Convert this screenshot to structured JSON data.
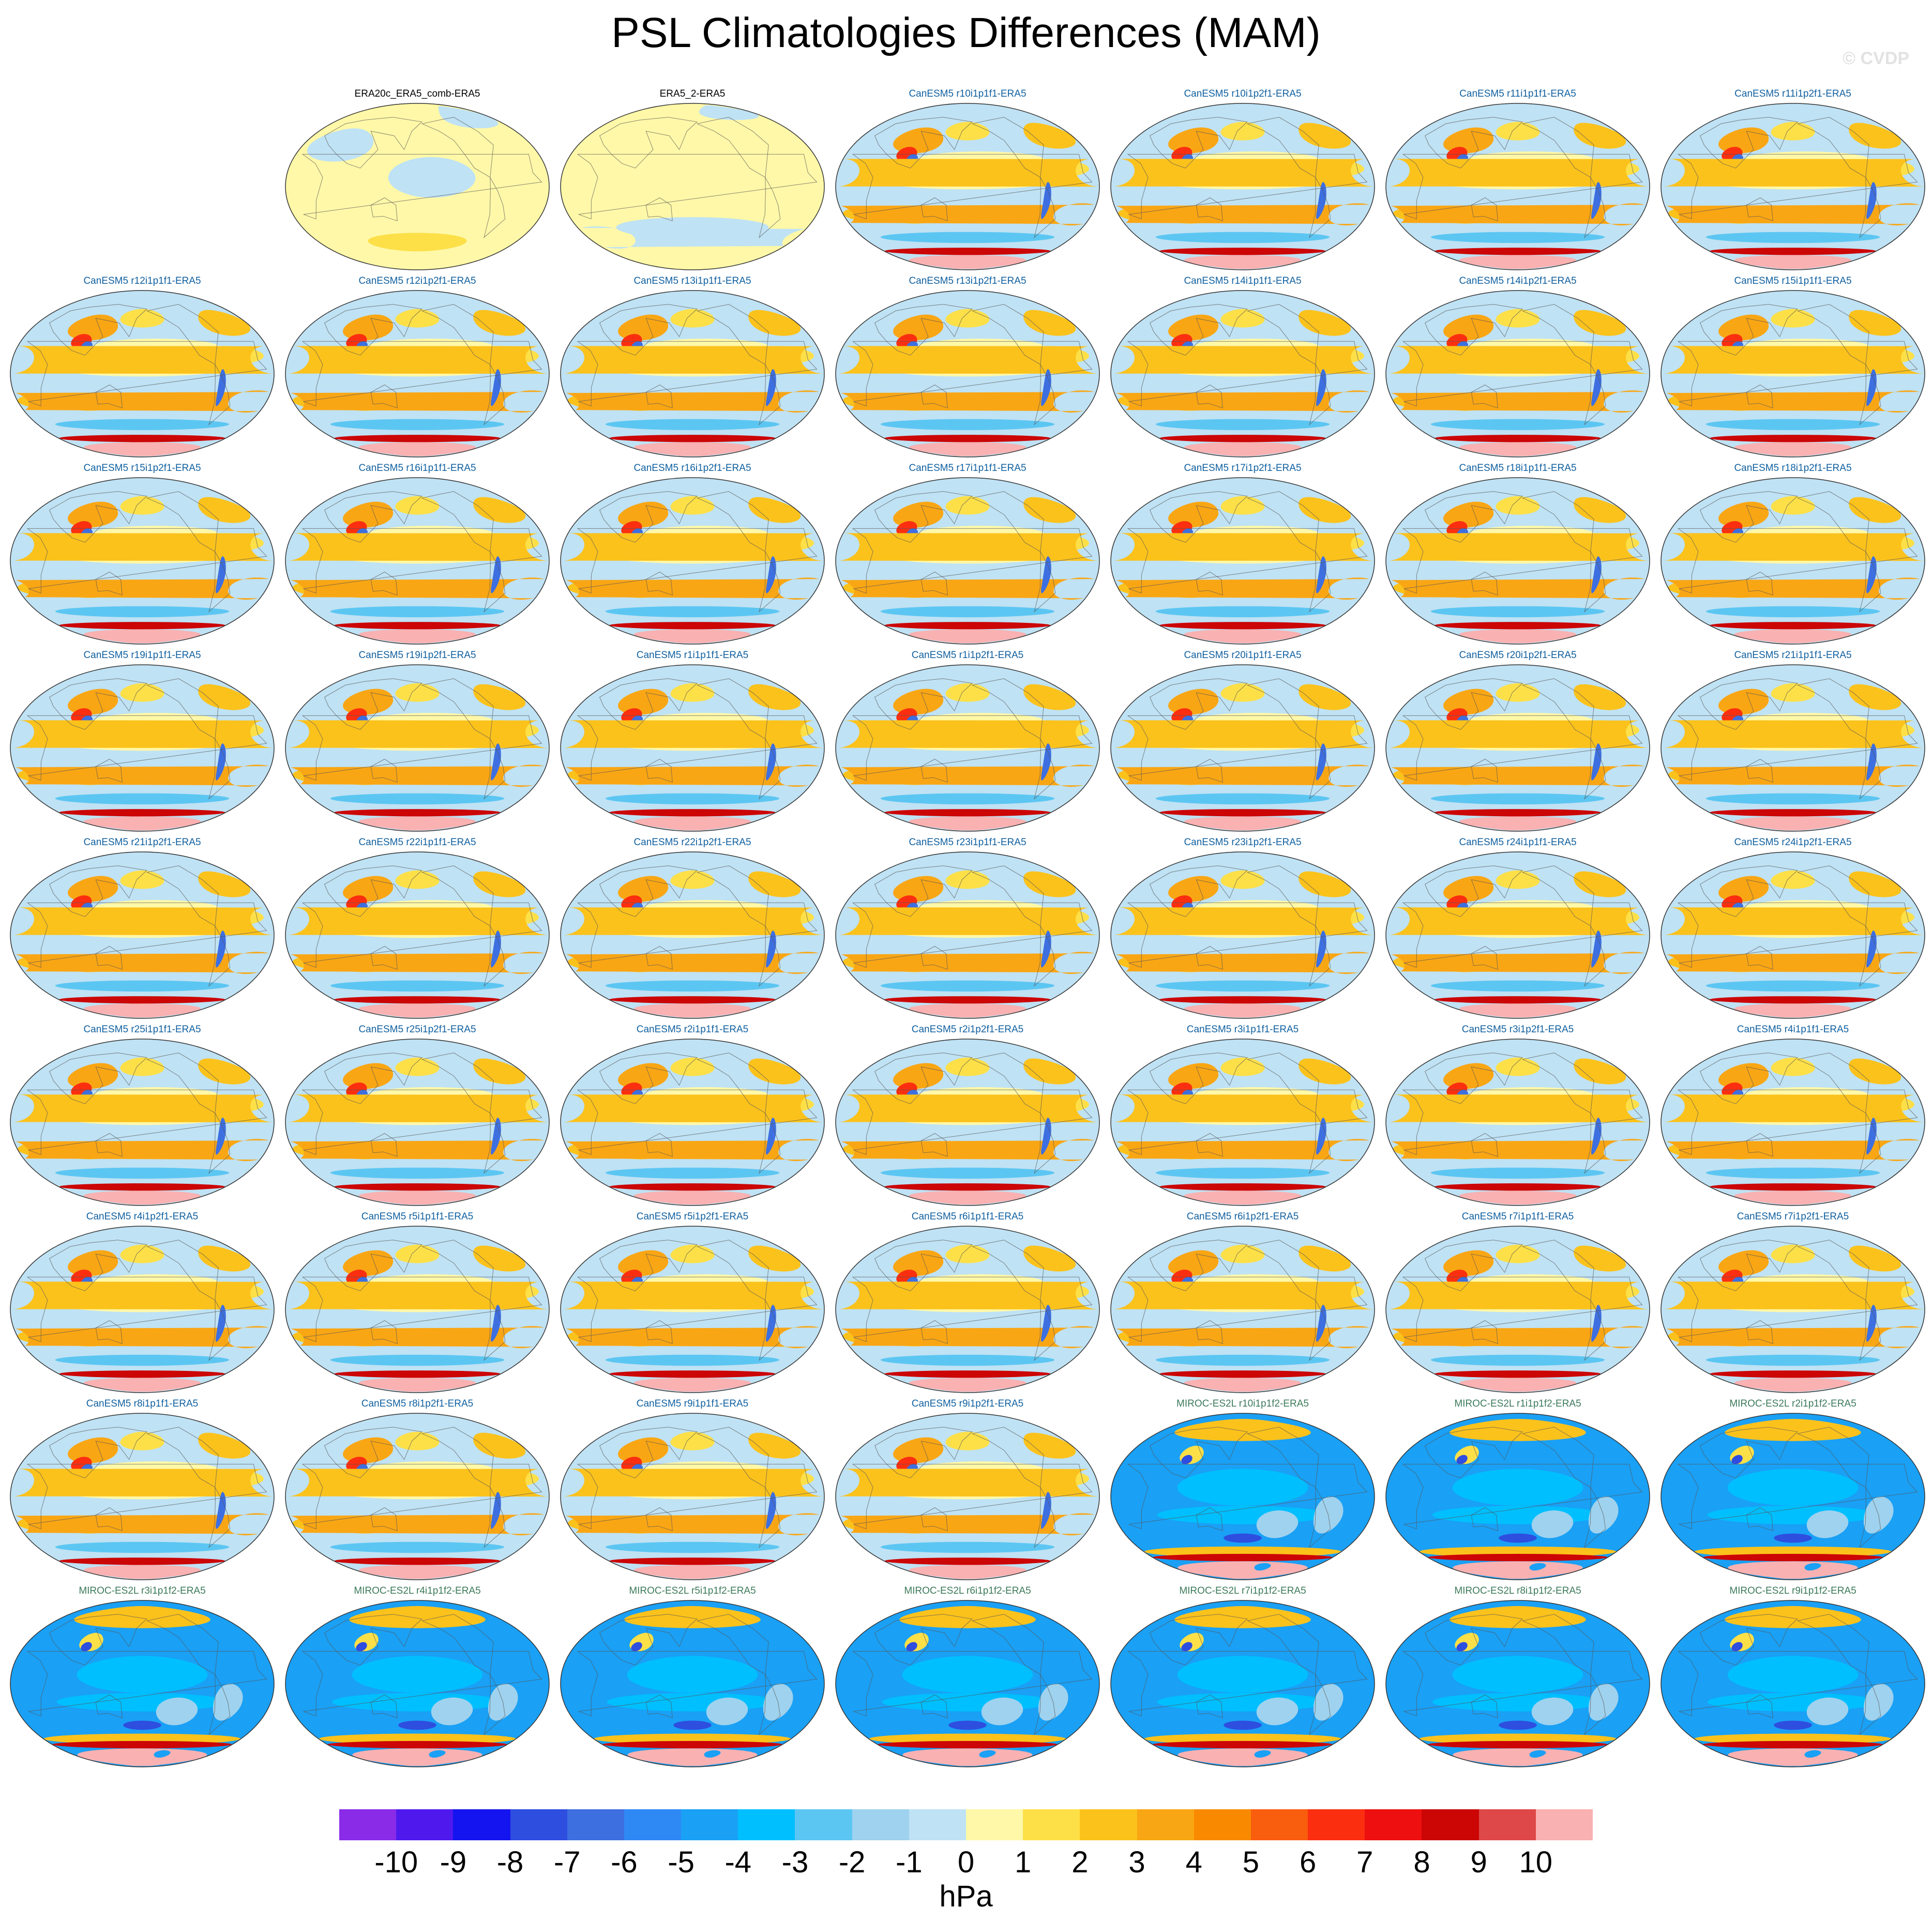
{
  "title": "PSL Climatologies Differences (MAM)",
  "watermark": "© CVDP",
  "chart_data": {
    "type": "map_grid",
    "title": "PSL Climatologies Differences (MAM)",
    "projection": "Robinson (Pacific-centered)",
    "variable": "PSL difference vs ERA5",
    "colorbar": {
      "units": "hPa",
      "levels": [
        -10,
        -9,
        -8,
        -7,
        -6,
        -5,
        -4,
        -3,
        -2,
        -1,
        0,
        1,
        2,
        3,
        4,
        5,
        6,
        7,
        8,
        9,
        10
      ],
      "tick_labels": [
        "-10",
        "-9",
        "-8",
        "-7",
        "-6",
        "-5",
        "-4",
        "-3",
        "-2",
        "-1",
        "0",
        "1",
        "2",
        "3",
        "4",
        "5",
        "6",
        "7",
        "8",
        "9",
        "10"
      ],
      "colors": [
        "#8a2be8",
        "#4f19ee",
        "#1414f0",
        "#2e4ee0",
        "#3d6fe0",
        "#2f89f5",
        "#1aa0f5",
        "#00bfff",
        "#5cc6f2",
        "#9fd2ee",
        "#bfe2f4",
        "#fff8a8",
        "#fde048",
        "#fbc21c",
        "#f9a614",
        "#f98a00",
        "#f95d0e",
        "#fb2f10",
        "#ee1010",
        "#cc0505",
        "#de4848",
        "#f9b1b1"
      ]
    },
    "panel_colors": {
      "ERA20c_ERA5_comb-ERA5": "#000000",
      "ERA5_2-ERA5": "#000000",
      "CanESM5": "#1060a0",
      "MIROC-ES2L": "#3c7a5a"
    },
    "panels": [
      {
        "label": "ERA20c_ERA5_comb-ERA5",
        "row": 0,
        "col": 1,
        "group": "obs1"
      },
      {
        "label": "ERA5_2-ERA5",
        "row": 0,
        "col": 2,
        "group": "obs2"
      },
      {
        "label": "CanESM5 r10i1p1f1-ERA5",
        "row": 0,
        "col": 3,
        "group": "canesm"
      },
      {
        "label": "CanESM5 r10i1p2f1-ERA5",
        "row": 0,
        "col": 4,
        "group": "canesm"
      },
      {
        "label": "CanESM5 r11i1p1f1-ERA5",
        "row": 0,
        "col": 5,
        "group": "canesm"
      },
      {
        "label": "CanESM5 r11i1p2f1-ERA5",
        "row": 0,
        "col": 6,
        "group": "canesm"
      },
      {
        "label": "CanESM5 r12i1p1f1-ERA5",
        "row": 1,
        "col": 0,
        "group": "canesm"
      },
      {
        "label": "CanESM5 r12i1p2f1-ERA5",
        "row": 1,
        "col": 1,
        "group": "canesm"
      },
      {
        "label": "CanESM5 r13i1p1f1-ERA5",
        "row": 1,
        "col": 2,
        "group": "canesm"
      },
      {
        "label": "CanESM5 r13i1p2f1-ERA5",
        "row": 1,
        "col": 3,
        "group": "canesm"
      },
      {
        "label": "CanESM5 r14i1p1f1-ERA5",
        "row": 1,
        "col": 4,
        "group": "canesm"
      },
      {
        "label": "CanESM5 r14i1p2f1-ERA5",
        "row": 1,
        "col": 5,
        "group": "canesm"
      },
      {
        "label": "CanESM5 r15i1p1f1-ERA5",
        "row": 1,
        "col": 6,
        "group": "canesm"
      },
      {
        "label": "CanESM5 r15i1p2f1-ERA5",
        "row": 2,
        "col": 0,
        "group": "canesm"
      },
      {
        "label": "CanESM5 r16i1p1f1-ERA5",
        "row": 2,
        "col": 1,
        "group": "canesm"
      },
      {
        "label": "CanESM5 r16i1p2f1-ERA5",
        "row": 2,
        "col": 2,
        "group": "canesm"
      },
      {
        "label": "CanESM5 r17i1p1f1-ERA5",
        "row": 2,
        "col": 3,
        "group": "canesm"
      },
      {
        "label": "CanESM5 r17i1p2f1-ERA5",
        "row": 2,
        "col": 4,
        "group": "canesm"
      },
      {
        "label": "CanESM5 r18i1p1f1-ERA5",
        "row": 2,
        "col": 5,
        "group": "canesm"
      },
      {
        "label": "CanESM5 r18i1p2f1-ERA5",
        "row": 2,
        "col": 6,
        "group": "canesm"
      },
      {
        "label": "CanESM5 r19i1p1f1-ERA5",
        "row": 3,
        "col": 0,
        "group": "canesm"
      },
      {
        "label": "CanESM5 r19i1p2f1-ERA5",
        "row": 3,
        "col": 1,
        "group": "canesm"
      },
      {
        "label": "CanESM5 r1i1p1f1-ERA5",
        "row": 3,
        "col": 2,
        "group": "canesm"
      },
      {
        "label": "CanESM5 r1i1p2f1-ERA5",
        "row": 3,
        "col": 3,
        "group": "canesm"
      },
      {
        "label": "CanESM5 r20i1p1f1-ERA5",
        "row": 3,
        "col": 4,
        "group": "canesm"
      },
      {
        "label": "CanESM5 r20i1p2f1-ERA5",
        "row": 3,
        "col": 5,
        "group": "canesm"
      },
      {
        "label": "CanESM5 r21i1p1f1-ERA5",
        "row": 3,
        "col": 6,
        "group": "canesm"
      },
      {
        "label": "CanESM5 r21i1p2f1-ERA5",
        "row": 4,
        "col": 0,
        "group": "canesm"
      },
      {
        "label": "CanESM5 r22i1p1f1-ERA5",
        "row": 4,
        "col": 1,
        "group": "canesm"
      },
      {
        "label": "CanESM5 r22i1p2f1-ERA5",
        "row": 4,
        "col": 2,
        "group": "canesm"
      },
      {
        "label": "CanESM5 r23i1p1f1-ERA5",
        "row": 4,
        "col": 3,
        "group": "canesm"
      },
      {
        "label": "CanESM5 r23i1p2f1-ERA5",
        "row": 4,
        "col": 4,
        "group": "canesm"
      },
      {
        "label": "CanESM5 r24i1p1f1-ERA5",
        "row": 4,
        "col": 5,
        "group": "canesm"
      },
      {
        "label": "CanESM5 r24i1p2f1-ERA5",
        "row": 4,
        "col": 6,
        "group": "canesm"
      },
      {
        "label": "CanESM5 r25i1p1f1-ERA5",
        "row": 5,
        "col": 0,
        "group": "canesm"
      },
      {
        "label": "CanESM5 r25i1p2f1-ERA5",
        "row": 5,
        "col": 1,
        "group": "canesm"
      },
      {
        "label": "CanESM5 r2i1p1f1-ERA5",
        "row": 5,
        "col": 2,
        "group": "canesm"
      },
      {
        "label": "CanESM5 r2i1p2f1-ERA5",
        "row": 5,
        "col": 3,
        "group": "canesm"
      },
      {
        "label": "CanESM5 r3i1p1f1-ERA5",
        "row": 5,
        "col": 4,
        "group": "canesm"
      },
      {
        "label": "CanESM5 r3i1p2f1-ERA5",
        "row": 5,
        "col": 5,
        "group": "canesm"
      },
      {
        "label": "CanESM5 r4i1p1f1-ERA5",
        "row": 5,
        "col": 6,
        "group": "canesm"
      },
      {
        "label": "CanESM5 r4i1p2f1-ERA5",
        "row": 6,
        "col": 0,
        "group": "canesm"
      },
      {
        "label": "CanESM5 r5i1p1f1-ERA5",
        "row": 6,
        "col": 1,
        "group": "canesm"
      },
      {
        "label": "CanESM5 r5i1p2f1-ERA5",
        "row": 6,
        "col": 2,
        "group": "canesm"
      },
      {
        "label": "CanESM5 r6i1p1f1-ERA5",
        "row": 6,
        "col": 3,
        "group": "canesm"
      },
      {
        "label": "CanESM5 r6i1p2f1-ERA5",
        "row": 6,
        "col": 4,
        "group": "canesm"
      },
      {
        "label": "CanESM5 r7i1p1f1-ERA5",
        "row": 6,
        "col": 5,
        "group": "canesm"
      },
      {
        "label": "CanESM5 r7i1p2f1-ERA5",
        "row": 6,
        "col": 6,
        "group": "canesm"
      },
      {
        "label": "CanESM5 r8i1p1f1-ERA5",
        "row": 7,
        "col": 0,
        "group": "canesm"
      },
      {
        "label": "CanESM5 r8i1p2f1-ERA5",
        "row": 7,
        "col": 1,
        "group": "canesm"
      },
      {
        "label": "CanESM5 r9i1p1f1-ERA5",
        "row": 7,
        "col": 2,
        "group": "canesm"
      },
      {
        "label": "CanESM5 r9i1p2f1-ERA5",
        "row": 7,
        "col": 3,
        "group": "canesm"
      },
      {
        "label": "MIROC-ES2L r10i1p1f2-ERA5",
        "row": 7,
        "col": 4,
        "group": "miroc"
      },
      {
        "label": "MIROC-ES2L r1i1p1f2-ERA5",
        "row": 7,
        "col": 5,
        "group": "miroc"
      },
      {
        "label": "MIROC-ES2L r2i1p1f2-ERA5",
        "row": 7,
        "col": 6,
        "group": "miroc"
      },
      {
        "label": "MIROC-ES2L r3i1p1f2-ERA5",
        "row": 8,
        "col": 0,
        "group": "miroc"
      },
      {
        "label": "MIROC-ES2L r4i1p1f2-ERA5",
        "row": 8,
        "col": 1,
        "group": "miroc"
      },
      {
        "label": "MIROC-ES2L r5i1p1f2-ERA5",
        "row": 8,
        "col": 2,
        "group": "miroc"
      },
      {
        "label": "MIROC-ES2L r6i1p1f2-ERA5",
        "row": 8,
        "col": 3,
        "group": "miroc"
      },
      {
        "label": "MIROC-ES2L r7i1p1f2-ERA5",
        "row": 8,
        "col": 4,
        "group": "miroc"
      },
      {
        "label": "MIROC-ES2L r8i1p1f2-ERA5",
        "row": 8,
        "col": 5,
        "group": "miroc"
      },
      {
        "label": "MIROC-ES2L r9i1p1f2-ERA5",
        "row": 8,
        "col": 6,
        "group": "miroc"
      }
    ],
    "field_patterns": {
      "obs1": {
        "background": 0.5,
        "features": [
          {
            "lon": 200,
            "lat": 10,
            "rx": 60,
            "ry": 22,
            "v": -0.5
          },
          {
            "lon": 60,
            "lat": 45,
            "rx": 50,
            "ry": 18,
            "v": -0.5
          },
          {
            "lon": 300,
            "lat": 75,
            "rx": 60,
            "ry": 12,
            "v": -0.5
          },
          {
            "lon": 180,
            "lat": -60,
            "rx": 90,
            "ry": 10,
            "v": 1.5
          }
        ]
      },
      "obs2": {
        "background": 0.5,
        "features": [
          {
            "lon": 180,
            "lat": -45,
            "rx": 120,
            "ry": 12,
            "v": -0.5
          },
          {
            "lon": 30,
            "lat": -55,
            "rx": 50,
            "ry": 12,
            "v": -0.5
          },
          {
            "lon": 280,
            "lat": 80,
            "rx": 80,
            "ry": 8,
            "v": -0.5
          }
        ]
      },
      "canesm": {
        "background": -0.5,
        "features": [
          {
            "lon": 180,
            "lat": 5,
            "rx": 110,
            "ry": 8,
            "v": 0.5
          },
          {
            "lon": 200,
            "lat": 30,
            "rx": 90,
            "ry": 8,
            "v": 0.5
          },
          {
            "lon": 40,
            "lat": -30,
            "rx": 40,
            "ry": 8,
            "v": 2.5
          },
          {
            "lon": 100,
            "lat": -32,
            "rx": 45,
            "ry": 8,
            "v": 2.5
          },
          {
            "lon": 160,
            "lat": -30,
            "rx": 35,
            "ry": 9,
            "v": 2.5
          },
          {
            "lon": 230,
            "lat": -30,
            "rx": 40,
            "ry": 9,
            "v": 2.5
          },
          {
            "lon": 340,
            "lat": -30,
            "rx": 35,
            "ry": 12,
            "v": 3.5
          },
          {
            "lon": 300,
            "lat": 20,
            "rx": 50,
            "ry": 10,
            "v": 1.5
          },
          {
            "lon": 320,
            "lat": 55,
            "rx": 40,
            "ry": 14,
            "v": 2.5
          },
          {
            "lon": 100,
            "lat": 50,
            "rx": 40,
            "ry": 14,
            "v": 3.5
          },
          {
            "lon": 90,
            "lat": 35,
            "rx": 15,
            "ry": 8,
            "v": 6.5
          },
          {
            "lon": 100,
            "lat": 30,
            "rx": 8,
            "ry": 5,
            "v": -6.5
          },
          {
            "lon": 180,
            "lat": 60,
            "rx": 40,
            "ry": 10,
            "v": 1.5
          },
          {
            "lon": 0,
            "lat": 15,
            "rx": 30,
            "ry": 15,
            "v": 2.5
          },
          {
            "lon": 290,
            "lat": -15,
            "rx": 5,
            "ry": 20,
            "v": -6.5
          },
          {
            "lon": 180,
            "lat": -55,
            "rx": 150,
            "ry": 6,
            "v": -2.5
          },
          {
            "lon": 180,
            "lat": -70,
            "rx": 180,
            "ry": 4,
            "v": 8.5
          },
          {
            "lon": 180,
            "lat": -82,
            "rx": 180,
            "ry": 8,
            "v": 10.5
          }
        ]
      },
      "miroc": {
        "background": -4.5,
        "features": [
          {
            "lon": 180,
            "lat": 10,
            "rx": 90,
            "ry": 20,
            "v": -3.5
          },
          {
            "lon": 180,
            "lat": -20,
            "rx": 120,
            "ry": 10,
            "v": -3.5
          },
          {
            "lon": 230,
            "lat": -30,
            "rx": 30,
            "ry": 15,
            "v": -1.5
          },
          {
            "lon": 300,
            "lat": -20,
            "rx": 20,
            "ry": 20,
            "v": -1.5
          },
          {
            "lon": 180,
            "lat": -45,
            "rx": 30,
            "ry": 5,
            "v": -7.5
          },
          {
            "lon": 180,
            "lat": 72,
            "rx": 150,
            "ry": 12,
            "v": 2.5
          },
          {
            "lon": 100,
            "lat": 45,
            "rx": 18,
            "ry": 10,
            "v": 1.5
          },
          {
            "lon": 95,
            "lat": 40,
            "rx": 8,
            "ry": 5,
            "v": -7.5
          },
          {
            "lon": 180,
            "lat": -60,
            "rx": 180,
            "ry": 6,
            "v": 2.5
          },
          {
            "lon": 180,
            "lat": -66,
            "rx": 180,
            "ry": 4,
            "v": 8.5
          },
          {
            "lon": 180,
            "lat": -80,
            "rx": 180,
            "ry": 10,
            "v": 10.5
          },
          {
            "lon": 230,
            "lat": -76,
            "rx": 20,
            "ry": 4,
            "v": -4.5
          }
        ]
      }
    },
    "land_outlines": [
      [
        [
          95,
          60
        ],
        [
          140,
          55
        ],
        [
          160,
          40
        ],
        [
          170,
          60
        ],
        [
          190,
          70
        ],
        [
          120,
          75
        ],
        [
          60,
          72
        ],
        [
          30,
          68
        ],
        [
          20,
          55
        ],
        [
          40,
          45
        ],
        [
          60,
          35
        ],
        [
          80,
          25
        ],
        [
          100,
          20
        ],
        [
          110,
          30
        ],
        [
          120,
          40
        ]
      ],
      [
        [
          190,
          68
        ],
        [
          220,
          60
        ],
        [
          240,
          50
        ],
        [
          250,
          35
        ],
        [
          260,
          20
        ],
        [
          280,
          10
        ],
        [
          300,
          45
        ],
        [
          290,
          60
        ],
        [
          270,
          75
        ],
        [
          230,
          72
        ]
      ],
      [
        [
          280,
          10
        ],
        [
          290,
          -5
        ],
        [
          300,
          -20
        ],
        [
          310,
          -35
        ],
        [
          295,
          -55
        ],
        [
          285,
          -30
        ],
        [
          280,
          -5
        ]
      ],
      [
        [
          345,
          35
        ],
        [
          10,
          35
        ],
        [
          35,
          25
        ],
        [
          50,
          10
        ],
        [
          40,
          -15
        ],
        [
          30,
          -35
        ],
        [
          15,
          -30
        ],
        [
          350,
          5
        ],
        [
          340,
          15
        ]
      ],
      [
        [
          115,
          -20
        ],
        [
          135,
          -12
        ],
        [
          150,
          -20
        ],
        [
          150,
          -37
        ],
        [
          130,
          -32
        ],
        [
          115,
          -33
        ]
      ]
    ]
  },
  "colorbar": {
    "units": "hPa",
    "tick_labels": [
      "-10",
      "-9",
      "-8",
      "-7",
      "-6",
      "-5",
      "-4",
      "-3",
      "-2",
      "-1",
      "0",
      "1",
      "2",
      "3",
      "4",
      "5",
      "6",
      "7",
      "8",
      "9",
      "10"
    ]
  }
}
